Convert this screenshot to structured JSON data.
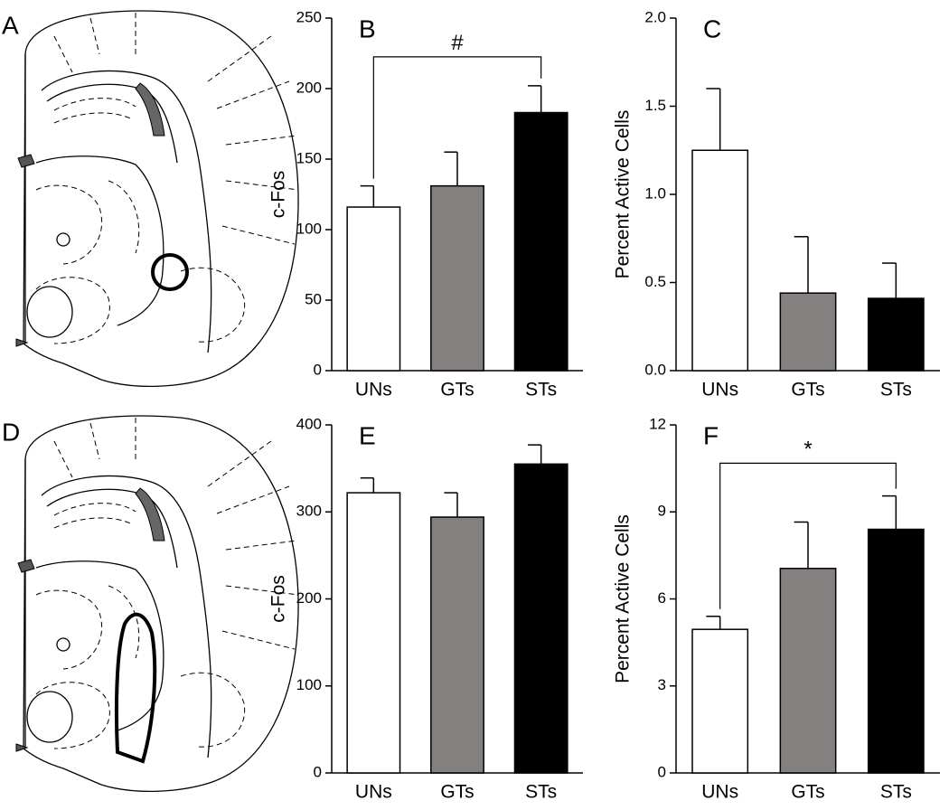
{
  "diagrams": [
    {
      "panel": "A"
    },
    {
      "panel": "D"
    }
  ],
  "chart_data": [
    {
      "type": "bar",
      "panel": "B",
      "ylabel": "c-Fos",
      "categories": [
        "UNs",
        "GTs",
        "STs"
      ],
      "values": [
        116,
        131,
        183
      ],
      "errors": [
        15,
        24,
        19
      ],
      "colors": [
        "#ffffff",
        "#858080",
        "#000000"
      ],
      "ylim": [
        0,
        250
      ],
      "yticks": [
        0,
        50,
        100,
        150,
        200,
        250
      ],
      "annotation": "#"
    },
    {
      "type": "bar",
      "panel": "C",
      "ylabel": "Percent Active Cells",
      "categories": [
        "UNs",
        "GTs",
        "STs"
      ],
      "values": [
        1.25,
        0.44,
        0.41
      ],
      "errors": [
        0.35,
        0.32,
        0.2
      ],
      "colors": [
        "#ffffff",
        "#858080",
        "#000000"
      ],
      "ylim": [
        0,
        2
      ],
      "yticks": [
        {
          "value": 0,
          "label": "0.0"
        },
        0.5,
        {
          "value": 1,
          "label": "1.0"
        },
        1.5,
        {
          "value": 2,
          "label": "2.0"
        }
      ]
    },
    {
      "type": "bar",
      "panel": "E",
      "ylabel": "c-Fos",
      "categories": [
        "UNs",
        "GTs",
        "STs"
      ],
      "values": [
        322,
        294,
        355
      ],
      "errors": [
        17,
        28,
        22
      ],
      "colors": [
        "#ffffff",
        "#858080",
        "#000000"
      ],
      "ylim": [
        0,
        400
      ],
      "yticks": [
        0,
        100,
        200,
        300,
        400
      ]
    },
    {
      "type": "bar",
      "panel": "F",
      "ylabel": "Percent Active Cells",
      "categories": [
        "UNs",
        "GTs",
        "STs"
      ],
      "values": [
        4.95,
        7.05,
        8.4
      ],
      "errors": [
        0.45,
        1.6,
        1.15
      ],
      "colors": [
        "#ffffff",
        "#858080",
        "#000000"
      ],
      "ylim": [
        0,
        12
      ],
      "yticks": [
        0,
        3,
        6,
        9,
        12
      ],
      "annotation": "*"
    }
  ]
}
